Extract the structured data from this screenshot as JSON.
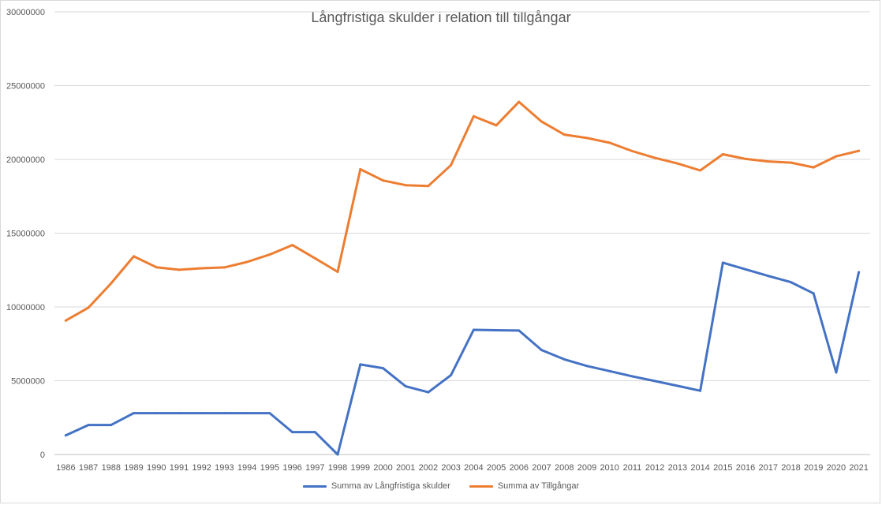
{
  "chart_data": {
    "type": "line",
    "title": "Långfristiga skulder i relation till tillgångar",
    "xlabel": "",
    "ylabel": "",
    "ylim": [
      0,
      30000000
    ],
    "yticks": [
      "0",
      "5000000",
      "10000000",
      "15000000",
      "20000000",
      "25000000",
      "30000000"
    ],
    "grid": true,
    "legend_position": "bottom",
    "categories": [
      "1986",
      "1987",
      "1988",
      "1989",
      "1990",
      "1991",
      "1992",
      "1993",
      "1994",
      "1995",
      "1996",
      "1997",
      "1998",
      "1999",
      "2000",
      "2001",
      "2002",
      "2003",
      "2004",
      "2005",
      "2006",
      "2007",
      "2008",
      "2009",
      "2010",
      "2011",
      "2012",
      "2013",
      "2014",
      "2015",
      "2016",
      "2017",
      "2018",
      "2019",
      "2020",
      "2021"
    ],
    "series": [
      {
        "name": "Summa av  Långfristiga skulder",
        "color": "#4472c4",
        "values": [
          1300000,
          2000000,
          2000000,
          2800000,
          2800000,
          2800000,
          2800000,
          2800000,
          2800000,
          2800000,
          1520000,
          1520000,
          0,
          6100000,
          5850000,
          4620000,
          4220000,
          5380000,
          8450000,
          8420000,
          8400000,
          7080000,
          6450000,
          6000000,
          5650000,
          5300000,
          4980000,
          4650000,
          4320000,
          13000000,
          12550000,
          12100000,
          11680000,
          10920000,
          5560000,
          12350000
        ]
      },
      {
        "name": "Summa av Tillgångar",
        "color": "#ed7d31",
        "values": [
          9080000,
          9950000,
          11600000,
          13430000,
          12690000,
          12520000,
          12620000,
          12680000,
          13050000,
          13550000,
          14190000,
          13300000,
          12380000,
          19330000,
          18570000,
          18250000,
          18200000,
          19610000,
          22920000,
          22310000,
          23900000,
          22560000,
          21680000,
          21450000,
          21130000,
          20560000,
          20100000,
          19720000,
          19250000,
          20350000,
          20030000,
          19860000,
          19780000,
          19460000,
          20210000,
          20580000
        ]
      }
    ]
  }
}
